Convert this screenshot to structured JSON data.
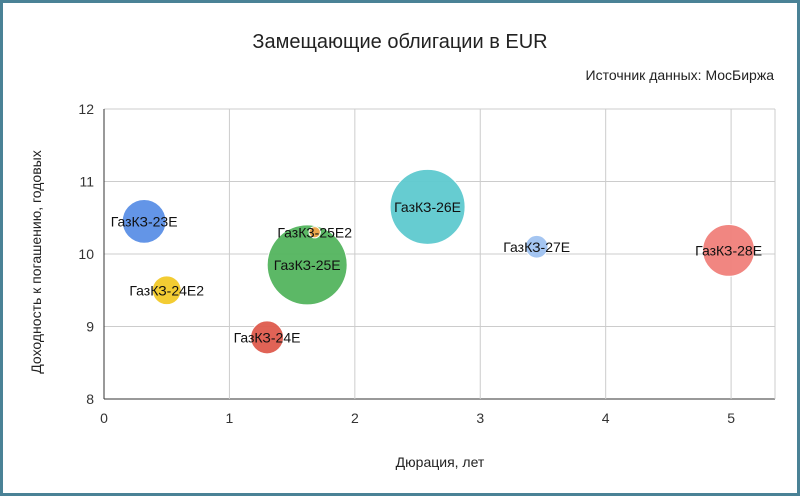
{
  "chart_data": {
    "type": "scatter",
    "variant": "bubble",
    "title": "Замещающие облигации в EUR",
    "subtitle": "Источник данных: МосБиржа",
    "xlabel": "Дюрация, лет",
    "ylabel": "Доходность к погашению, годовых",
    "xlim": [
      0,
      5.35
    ],
    "ylim": [
      8,
      12
    ],
    "xticks": [
      "0",
      "1",
      "2",
      "3",
      "4",
      "5"
    ],
    "yticks": [
      "8",
      "9",
      "10",
      "11",
      "12"
    ],
    "grid": true,
    "points": [
      {
        "label": "ГазКЗ-23Е",
        "x": 0.32,
        "y": 10.45,
        "size": 0.3,
        "color": "#5b8fe6"
      },
      {
        "label": "ГазКЗ-24Е2",
        "x": 0.5,
        "y": 9.5,
        "size": 0.13,
        "color": "#f2c928"
      },
      {
        "label": "ГазКЗ-24Е",
        "x": 1.3,
        "y": 8.85,
        "size": 0.17,
        "color": "#de5b4d"
      },
      {
        "label": "ГазКЗ-25Е2",
        "x": 1.68,
        "y": 10.3,
        "size": 0.02,
        "color": "#f2a44a"
      },
      {
        "label": "ГазКЗ-25Е",
        "x": 1.62,
        "y": 9.85,
        "size": 1.0,
        "color": "#53b45e"
      },
      {
        "label": "ГазКЗ-26Е",
        "x": 2.58,
        "y": 10.65,
        "size": 0.88,
        "color": "#5ec9cf"
      },
      {
        "label": "ГазКЗ-27Е",
        "x": 3.45,
        "y": 10.1,
        "size": 0.08,
        "color": "#9fc2f0"
      },
      {
        "label": "ГазКЗ-28Е",
        "x": 4.98,
        "y": 10.05,
        "size": 0.42,
        "color": "#f0807a"
      }
    ]
  }
}
